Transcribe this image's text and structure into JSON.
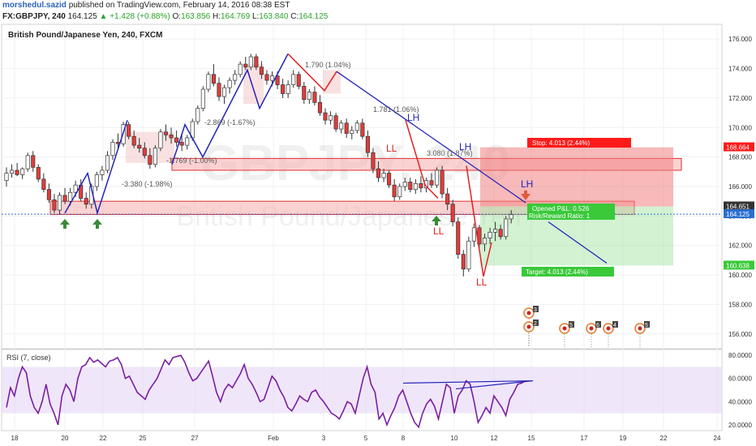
{
  "header": {
    "author": "morshedul.sazid",
    "published": "published on TradingView.com, February 14, 2016 08:38 EST",
    "symbol": "FX:GBPJPY, 240",
    "last": "164.125",
    "change": "▲ +1.428 (+0.88%)",
    "o_label": "O:",
    "o": "163.856",
    "h_label": "H:",
    "h": "164.769",
    "l_label": "L:",
    "l": "163.840",
    "c_label": "C:",
    "c": "164.125"
  },
  "chart_data": {
    "type": "candlestick",
    "title": "British Pound/Japanese Yen, 240, FXCM",
    "watermark_symbol": "GBPJPY, 240",
    "watermark_name": "British Pound/Japanese Yen",
    "ylim": [
      155,
      177
    ],
    "y_ticks": [
      "176.000",
      "174.000",
      "172.000",
      "170.000",
      "168.000",
      "166.000",
      "164.000",
      "162.000",
      "160.000",
      "158.000",
      "156.000"
    ],
    "x_ticks": [
      "18",
      "20",
      "22",
      "25",
      "27",
      "Feb",
      "3",
      "5",
      "8",
      "10",
      "12",
      "15",
      "17",
      "19",
      "22",
      "24"
    ],
    "price_labels": {
      "stop": "168.664",
      "open": "164.651",
      "last": "164.125",
      "target": "160.638"
    },
    "candles": [
      [
        166.4,
        167.3,
        166.0,
        166.9
      ],
      [
        166.9,
        167.5,
        166.6,
        167.1
      ],
      [
        167.1,
        167.6,
        166.7,
        166.8
      ],
      [
        166.8,
        167.3,
        166.5,
        167.2
      ],
      [
        167.2,
        168.3,
        167.0,
        168.1
      ],
      [
        168.1,
        168.4,
        167.0,
        167.3
      ],
      [
        167.3,
        167.5,
        166.3,
        166.5
      ],
      [
        166.5,
        166.9,
        165.6,
        165.8
      ],
      [
        165.8,
        166.2,
        164.9,
        165.1
      ],
      [
        165.1,
        165.5,
        164.2,
        164.4
      ],
      [
        164.4,
        165.6,
        164.1,
        165.4
      ],
      [
        165.4,
        165.9,
        164.8,
        165.0
      ],
      [
        165.0,
        165.9,
        164.7,
        165.6
      ],
      [
        165.6,
        166.4,
        165.3,
        166.1
      ],
      [
        166.1,
        166.5,
        165.0,
        165.2
      ],
      [
        165.2,
        165.6,
        164.5,
        164.8
      ],
      [
        164.8,
        166.2,
        164.5,
        166.0
      ],
      [
        166.0,
        167.0,
        165.7,
        166.8
      ],
      [
        166.8,
        167.4,
        166.4,
        167.1
      ],
      [
        167.1,
        168.4,
        166.9,
        168.1
      ],
      [
        168.1,
        169.2,
        167.8,
        169.0
      ],
      [
        169.0,
        169.6,
        168.5,
        168.9
      ],
      [
        168.9,
        170.4,
        168.7,
        170.2
      ],
      [
        170.2,
        170.4,
        169.2,
        169.4
      ],
      [
        169.4,
        169.8,
        168.6,
        168.8
      ],
      [
        168.8,
        169.3,
        168.3,
        168.6
      ],
      [
        168.6,
        169.0,
        167.9,
        168.1
      ],
      [
        168.1,
        168.6,
        167.2,
        167.5
      ],
      [
        167.5,
        168.8,
        167.3,
        168.6
      ],
      [
        168.6,
        169.9,
        168.4,
        169.7
      ],
      [
        169.7,
        170.2,
        169.1,
        169.5
      ],
      [
        169.5,
        170.0,
        168.9,
        169.3
      ],
      [
        169.3,
        169.8,
        168.7,
        169.0
      ],
      [
        169.0,
        169.6,
        168.4,
        168.8
      ],
      [
        168.8,
        169.5,
        168.5,
        169.3
      ],
      [
        169.3,
        170.6,
        169.1,
        170.4
      ],
      [
        170.4,
        171.5,
        170.2,
        171.3
      ],
      [
        171.3,
        172.8,
        171.1,
        172.6
      ],
      [
        172.6,
        173.8,
        172.4,
        173.6
      ],
      [
        173.6,
        174.3,
        172.8,
        173.0
      ],
      [
        173.0,
        173.4,
        171.8,
        172.1
      ],
      [
        172.1,
        172.9,
        171.6,
        172.7
      ],
      [
        172.7,
        173.4,
        172.3,
        173.2
      ],
      [
        173.2,
        173.9,
        172.9,
        173.6
      ],
      [
        173.6,
        174.5,
        173.4,
        174.3
      ],
      [
        174.3,
        174.8,
        173.9,
        174.1
      ],
      [
        174.1,
        175.0,
        173.9,
        174.8
      ],
      [
        174.8,
        175.0,
        173.9,
        174.1
      ],
      [
        174.1,
        174.5,
        173.3,
        173.6
      ],
      [
        173.6,
        173.9,
        172.9,
        173.2
      ],
      [
        173.2,
        173.8,
        172.8,
        173.5
      ],
      [
        173.5,
        173.8,
        172.6,
        172.9
      ],
      [
        172.9,
        173.3,
        172.0,
        172.3
      ],
      [
        172.3,
        173.2,
        172.0,
        172.9
      ],
      [
        172.9,
        173.9,
        172.7,
        173.6
      ],
      [
        173.6,
        173.8,
        172.6,
        172.8
      ],
      [
        172.8,
        173.1,
        171.6,
        171.9
      ],
      [
        171.9,
        172.6,
        171.6,
        172.4
      ],
      [
        172.4,
        172.8,
        171.5,
        171.7
      ],
      [
        171.7,
        172.2,
        170.8,
        171.0
      ],
      [
        171.0,
        171.3,
        170.2,
        170.5
      ],
      [
        170.5,
        171.1,
        170.2,
        170.8
      ],
      [
        170.8,
        171.0,
        169.7,
        169.9
      ],
      [
        169.9,
        170.5,
        169.6,
        170.3
      ],
      [
        170.3,
        170.6,
        169.3,
        169.6
      ],
      [
        169.6,
        170.1,
        169.2,
        169.8
      ],
      [
        169.8,
        170.5,
        169.6,
        170.3
      ],
      [
        170.3,
        170.6,
        169.2,
        169.4
      ],
      [
        169.4,
        169.8,
        168.0,
        168.3
      ],
      [
        168.3,
        168.6,
        166.9,
        167.2
      ],
      [
        167.2,
        167.7,
        166.3,
        166.6
      ],
      [
        166.6,
        167.2,
        166.3,
        166.9
      ],
      [
        166.9,
        167.1,
        165.9,
        166.1
      ],
      [
        166.1,
        166.5,
        165.0,
        165.3
      ],
      [
        165.3,
        166.2,
        165.1,
        166.0
      ],
      [
        166.0,
        166.6,
        165.7,
        166.3
      ],
      [
        166.3,
        166.6,
        165.6,
        165.8
      ],
      [
        165.8,
        166.5,
        165.5,
        166.2
      ],
      [
        166.2,
        166.7,
        165.6,
        165.9
      ],
      [
        165.9,
        166.6,
        165.6,
        166.4
      ],
      [
        166.4,
        166.9,
        165.9,
        166.1
      ],
      [
        166.1,
        167.3,
        165.9,
        167.1
      ],
      [
        167.1,
        167.4,
        165.2,
        165.5
      ],
      [
        165.5,
        165.9,
        164.4,
        164.8
      ],
      [
        164.8,
        165.1,
        163.3,
        163.6
      ],
      [
        163.6,
        163.9,
        161.1,
        161.4
      ],
      [
        161.4,
        161.7,
        159.9,
        160.4
      ],
      [
        160.4,
        162.6,
        160.2,
        162.3
      ],
      [
        162.3,
        163.5,
        161.9,
        163.2
      ],
      [
        163.2,
        163.4,
        161.8,
        162.1
      ],
      [
        162.1,
        162.8,
        161.6,
        162.5
      ],
      [
        162.5,
        163.2,
        162.1,
        162.9
      ],
      [
        162.9,
        163.6,
        162.3,
        163.1
      ],
      [
        163.1,
        163.4,
        162.4,
        162.6
      ],
      [
        162.6,
        164.0,
        162.4,
        163.8
      ],
      [
        163.8,
        164.4,
        163.5,
        164.1
      ]
    ],
    "annotations": [
      {
        "text": "1.790 (1.04%)",
        "color": "#555"
      },
      {
        "text": "1.781 (1.06%)",
        "color": "#555"
      },
      {
        "text": "3.080 (1.87%)",
        "color": "#555"
      },
      {
        "text": "-3.380 (-1.98%)",
        "color": "#555"
      },
      {
        "text": "-2.869 (-1.67%)",
        "color": "#555"
      },
      {
        "text": "-1.769 (-1.00%)",
        "color": "#555"
      }
    ],
    "pattern_labels": [
      {
        "text": "LH",
        "color": "#2424b8"
      },
      {
        "text": "LH",
        "color": "#2424b8"
      },
      {
        "text": "LH",
        "color": "#2424b8"
      },
      {
        "text": "LL",
        "color": "#e02020"
      },
      {
        "text": "LL",
        "color": "#e02020"
      },
      {
        "text": "LL",
        "color": "#e02020"
      }
    ],
    "trade_box": {
      "stop_label": "Stop: 4.013 (2.44%)",
      "opened_label": "Opened P&L: 0.526",
      "ratio_label": "Risk/Reward Ratio: 1",
      "target_label": "Target: 4.013 (2.44%)"
    },
    "event_badges": [
      "3",
      "2",
      "5",
      "6",
      "4",
      "5"
    ],
    "rsi": {
      "title": "RSI (7, close)",
      "ylim": [
        15,
        85
      ],
      "y_ticks": [
        "80.0000",
        "60.0000",
        "40.0000",
        "20.0000"
      ],
      "band": [
        30,
        70
      ],
      "values": [
        35,
        52,
        45,
        60,
        70,
        65,
        45,
        35,
        30,
        40,
        55,
        38,
        30,
        20,
        45,
        55,
        50,
        40,
        60,
        70,
        72,
        78,
        74,
        76,
        73,
        70,
        75,
        76,
        78,
        72,
        60,
        62,
        55,
        48,
        45,
        42,
        50,
        55,
        60,
        68,
        76,
        72,
        78,
        79,
        80,
        74,
        65,
        58,
        60,
        65,
        70,
        75,
        62,
        48,
        40,
        50,
        55,
        52,
        58,
        64,
        72,
        60,
        55,
        48,
        40,
        42,
        52,
        62,
        58,
        50,
        44,
        35,
        32,
        38,
        45,
        42,
        40,
        48,
        50,
        44,
        40,
        35,
        30,
        28,
        25,
        32,
        40,
        38,
        30,
        45,
        60,
        70,
        55,
        48,
        25,
        30,
        20,
        28,
        35,
        45,
        50,
        40,
        30,
        22,
        18,
        30,
        38,
        42,
        36,
        25,
        40,
        55,
        52,
        30,
        45,
        50,
        58,
        55,
        40,
        22,
        28,
        35,
        30,
        45,
        40,
        35,
        28,
        42,
        48,
        55,
        56,
        58
      ],
      "divergence": "bullish"
    }
  }
}
